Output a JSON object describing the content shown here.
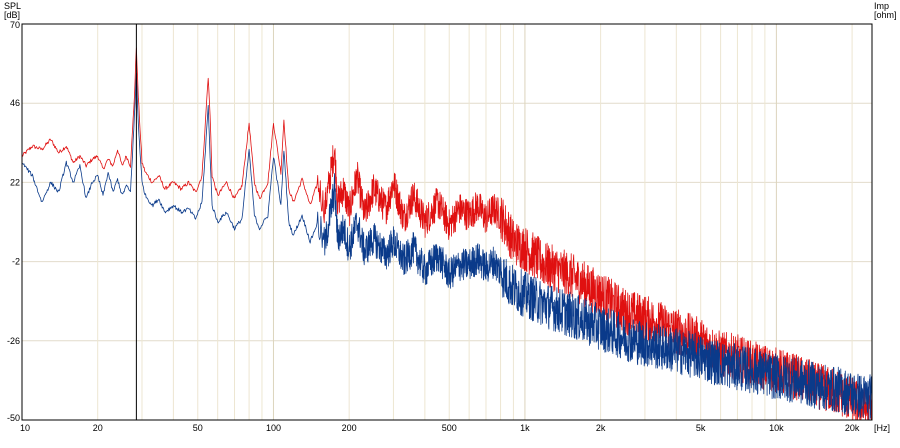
{
  "chart_data": {
    "type": "line",
    "title": "",
    "left_axis": {
      "label_line1": "SPL",
      "label_line2": "[dB]"
    },
    "right_axis": {
      "label_line1": "Imp",
      "label_line2": "[ohm]"
    },
    "x_unit": "[Hz]",
    "x_scale": "log",
    "xlim": [
      10,
      24000
    ],
    "ylim": [
      -50,
      70
    ],
    "y_ticks": [
      70,
      46,
      22,
      -2,
      -26,
      -50
    ],
    "y_tick_labels": [
      "70",
      "46",
      "22",
      "-2",
      "-26",
      "-50"
    ],
    "x_ticks": [
      10,
      20,
      50,
      100,
      200,
      500,
      1000,
      2000,
      5000,
      10000,
      20000
    ],
    "x_tick_labels": [
      "10",
      "20",
      "50",
      "100",
      "200",
      "500",
      "1k",
      "2k",
      "5k",
      "10k",
      "20k"
    ],
    "grid": true,
    "cursor_x": 28.5,
    "series": [
      {
        "color": "#e01010",
        "x": [
          10,
          11,
          12,
          13,
          14,
          15,
          16,
          17,
          18,
          19,
          20,
          21,
          22,
          23,
          24,
          25,
          26,
          27,
          28,
          28.5,
          29,
          30,
          31,
          33,
          35,
          37,
          40,
          43,
          46,
          49,
          52,
          55,
          56,
          57,
          60,
          65,
          70,
          75,
          80,
          84,
          88,
          95,
          100,
          107,
          110,
          115,
          120,
          130,
          140,
          150,
          160,
          175,
          180,
          190,
          200,
          215,
          230,
          250,
          280,
          300,
          330,
          360,
          400,
          450,
          500,
          550,
          600,
          650,
          700,
          750,
          800,
          850,
          900,
          1000,
          1200,
          1500,
          2000,
          2500,
          3000,
          4000,
          5000,
          6000,
          7000,
          8000,
          10000,
          12000,
          15000,
          18000,
          20000,
          22000,
          24000
        ],
        "values": [
          30,
          33,
          32,
          35,
          31,
          33,
          28,
          30,
          27,
          29,
          30,
          26,
          29,
          27,
          32,
          27,
          30,
          27,
          48,
          63,
          48,
          28,
          25,
          22,
          24,
          20,
          22,
          20,
          22,
          19,
          24,
          54,
          42,
          24,
          18,
          22,
          17,
          21,
          40,
          22,
          17,
          22,
          40,
          25,
          41,
          20,
          16,
          23,
          15,
          22,
          14,
          32,
          16,
          20,
          13,
          24,
          12,
          20,
          14,
          22,
          11,
          18,
          10,
          16,
          9,
          14,
          12,
          15,
          11,
          14,
          12,
          8,
          4,
          2,
          -3,
          -6,
          -12,
          -17,
          -19,
          -23,
          -26,
          -30,
          -31,
          -33,
          -35,
          -37,
          -40,
          -42,
          -44,
          -46,
          -48
        ]
      },
      {
        "color": "#0a3a8a",
        "x": [
          10,
          11,
          12,
          13,
          14,
          15,
          16,
          17,
          18,
          19,
          20,
          21,
          22,
          23,
          24,
          25,
          26,
          27,
          28,
          28.5,
          29,
          30,
          31,
          33,
          35,
          37,
          40,
          43,
          46,
          49,
          52,
          55,
          56,
          57,
          60,
          65,
          70,
          75,
          80,
          84,
          88,
          95,
          100,
          107,
          110,
          115,
          120,
          130,
          140,
          150,
          160,
          175,
          180,
          190,
          200,
          215,
          230,
          250,
          280,
          300,
          330,
          360,
          400,
          450,
          500,
          550,
          600,
          650,
          700,
          750,
          800,
          850,
          900,
          1000,
          1200,
          1500,
          2000,
          2500,
          3000,
          4000,
          5000,
          6000,
          7000,
          8000,
          10000,
          12000,
          15000,
          18000,
          20000,
          22000,
          24000
        ],
        "values": [
          28,
          24,
          16,
          22,
          19,
          28,
          22,
          27,
          17,
          22,
          24,
          18,
          25,
          19,
          23,
          18,
          21,
          19,
          42,
          55,
          40,
          22,
          18,
          15,
          17,
          13,
          15,
          13,
          14,
          11,
          16,
          45,
          30,
          15,
          10,
          13,
          8,
          11,
          32,
          12,
          8,
          12,
          30,
          15,
          32,
          10,
          6,
          12,
          4,
          10,
          3,
          20,
          5,
          8,
          2,
          10,
          1,
          5,
          0,
          4,
          -2,
          2,
          -5,
          0,
          -6,
          -3,
          -3,
          -1,
          -4,
          -2,
          -5,
          -8,
          -10,
          -12,
          -15,
          -18,
          -22,
          -25,
          -27,
          -29,
          -31,
          -33,
          -34,
          -35,
          -37,
          -38,
          -40,
          -41,
          -42,
          -43,
          -43
        ]
      }
    ]
  }
}
